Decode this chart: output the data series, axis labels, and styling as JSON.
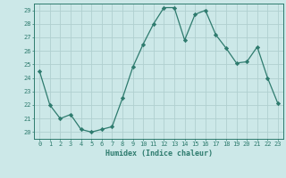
{
  "x": [
    0,
    1,
    2,
    3,
    4,
    5,
    6,
    7,
    8,
    9,
    10,
    11,
    12,
    13,
    14,
    15,
    16,
    17,
    18,
    19,
    20,
    21,
    22,
    23
  ],
  "y": [
    24.5,
    22.0,
    21.0,
    21.3,
    20.2,
    20.0,
    20.2,
    20.4,
    22.5,
    24.8,
    26.5,
    28.0,
    29.2,
    29.2,
    26.8,
    28.7,
    29.0,
    27.2,
    26.2,
    25.1,
    25.2,
    26.3,
    24.0,
    22.1
  ],
  "xlabel": "Humidex (Indice chaleur)",
  "xlim": [
    -0.5,
    23.5
  ],
  "ylim": [
    19.5,
    29.5
  ],
  "yticks": [
    20,
    21,
    22,
    23,
    24,
    25,
    26,
    27,
    28,
    29
  ],
  "xticks": [
    0,
    1,
    2,
    3,
    4,
    5,
    6,
    7,
    8,
    9,
    10,
    11,
    12,
    13,
    14,
    15,
    16,
    17,
    18,
    19,
    20,
    21,
    22,
    23
  ],
  "line_color": "#2e7b6e",
  "marker": "D",
  "marker_size": 2.2,
  "bg_color": "#cce8e8",
  "grid_color": "#b0d0d0",
  "label_color": "#2e7b6e",
  "tick_color": "#2e7b6e",
  "spine_color": "#2e7b6e"
}
